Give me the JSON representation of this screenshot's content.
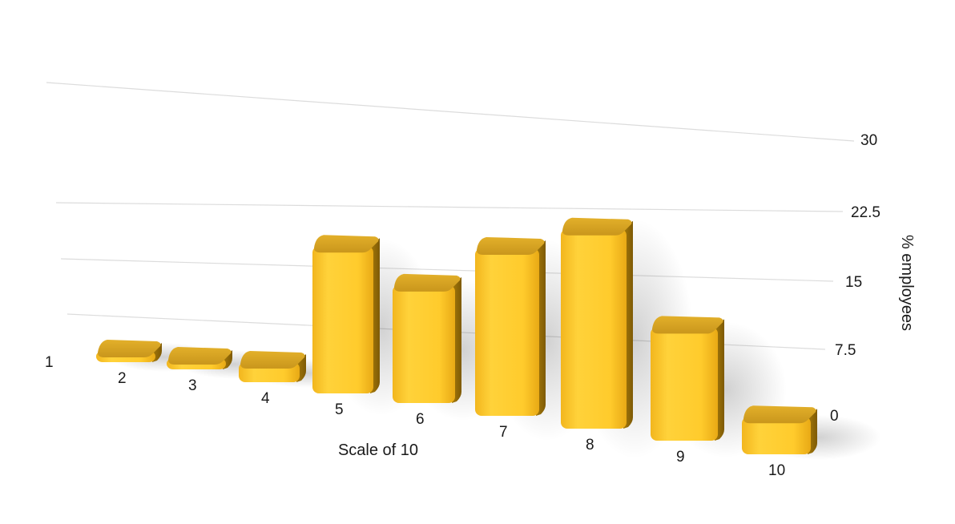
{
  "chart_data": {
    "type": "bar",
    "categories": [
      "1",
      "2",
      "3",
      "4",
      "5",
      "6",
      "7",
      "8",
      "9",
      "10"
    ],
    "values": [
      0,
      0.8,
      0.8,
      2.5,
      17.5,
      13.5,
      18.5,
      21.3,
      11.8,
      3.8
    ],
    "xlabel": "Scale of 10",
    "ylabel": "% employees",
    "ylim": [
      0,
      30
    ],
    "yticks": [
      "0",
      "7.5",
      "15",
      "22.5",
      "30"
    ],
    "grid": true,
    "style": "3d-perspective",
    "bar_color": "#FFC92B",
    "bar_top_color": "#D9A520",
    "bar_side_color": "#B8860B"
  }
}
